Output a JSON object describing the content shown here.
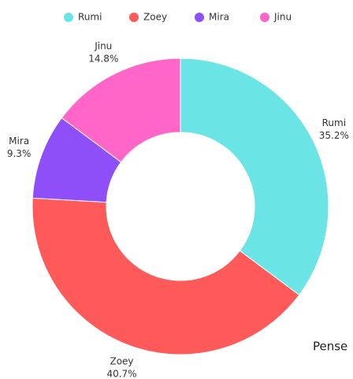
{
  "chart_data": {
    "type": "pie",
    "categories": [
      "Rumi",
      "Zoey",
      "Mira",
      "Jinu"
    ],
    "values": [
      35.2,
      40.7,
      9.3,
      14.8
    ],
    "value_labels": [
      "35.2%",
      "40.7%",
      "9.3%",
      "14.8%"
    ],
    "colors": [
      "#6be4e6",
      "#ff5a5a",
      "#8e4ff8",
      "#ff66c8"
    ],
    "donut": true,
    "legend": "top",
    "annotations": [
      "Pense"
    ]
  }
}
